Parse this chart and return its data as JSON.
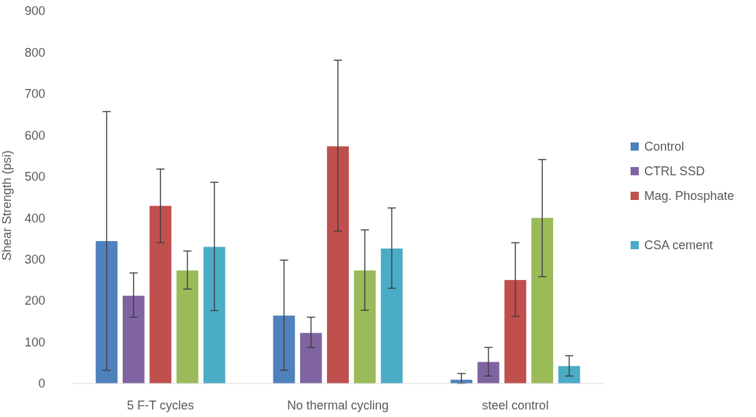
{
  "chart_data": {
    "type": "bar",
    "ylabel": "Shear Strength (psi)",
    "categories": [
      "5 F-T cycles",
      "No thermal cycling",
      "steel control"
    ],
    "series": [
      {
        "name": "Control",
        "color": "#4f81bd",
        "values": [
          344,
          164,
          9
        ],
        "errors": [
          [
            32,
            657
          ],
          [
            32,
            298
          ],
          [
            0,
            24
          ]
        ]
      },
      {
        "name": "CTRL SSD",
        "color": "#8064a2",
        "values": [
          212,
          122,
          52
        ],
        "errors": [
          [
            160,
            267
          ],
          [
            87,
            160
          ],
          [
            18,
            87
          ]
        ]
      },
      {
        "name": "Mag. Phosphate",
        "color": "#c0504d",
        "values": [
          429,
          573,
          250
        ],
        "errors": [
          [
            340,
            518
          ],
          [
            368,
            781
          ],
          [
            162,
            340
          ]
        ]
      },
      {
        "color": "#9bbb59",
        "values": [
          273,
          273,
          400
        ],
        "errors": [
          [
            228,
            320
          ],
          [
            177,
            371
          ],
          [
            258,
            541
          ]
        ]
      },
      {
        "name": "CSA cement",
        "color": "#4bacc6",
        "values": [
          330,
          326,
          42
        ],
        "errors": [
          [
            176,
            486
          ],
          [
            230,
            424
          ],
          [
            18,
            67
          ]
        ]
      }
    ],
    "ylim": [
      0,
      900
    ],
    "yticks": [
      0,
      100,
      200,
      300,
      400,
      500,
      600,
      700,
      800,
      900
    ],
    "grid": false,
    "legend": "right"
  }
}
